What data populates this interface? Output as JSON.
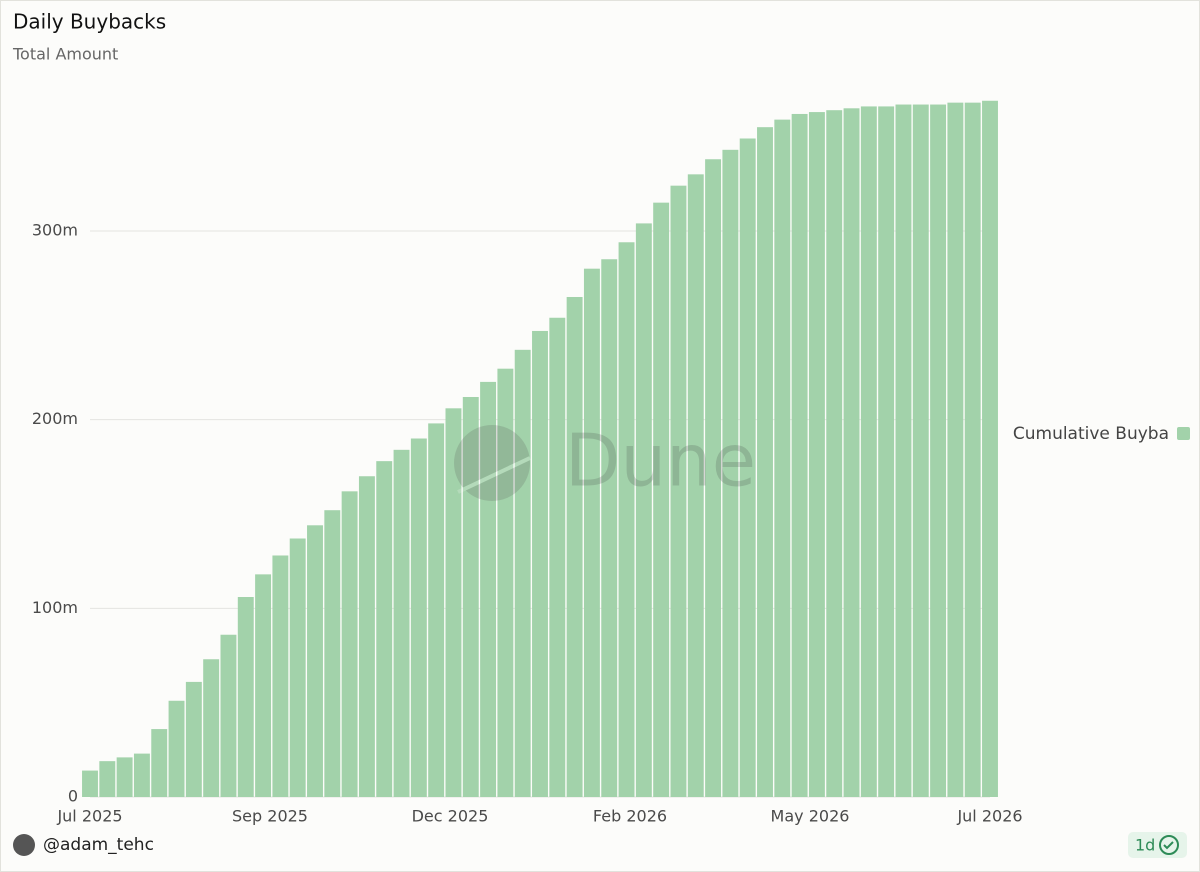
{
  "chart_data": {
    "type": "bar",
    "title": "Daily Buybacks",
    "subtitle": "Total Amount",
    "watermark": "Dune",
    "author": "@adam_tehc",
    "refresh": "1d",
    "legend": "right",
    "grid": true,
    "series": [
      {
        "name": "Cumulative Buyba",
        "color": "#a2d2aa",
        "values": [
          14000000,
          19000000,
          21000000,
          23000000,
          36000000,
          51000000,
          61000000,
          73000000,
          86000000,
          106000000,
          118000000,
          128000000,
          137000000,
          144000000,
          152000000,
          162000000,
          170000000,
          178000000,
          184000000,
          190000000,
          198000000,
          206000000,
          212000000,
          220000000,
          227000000,
          237000000,
          247000000,
          254000000,
          265000000,
          280000000,
          285000000,
          294000000,
          304000000,
          315000000,
          324000000,
          330000000,
          338000000,
          343000000,
          349000000,
          355000000,
          359000000,
          362000000,
          363000000,
          364000000,
          365000000,
          366000000,
          366000000,
          367000000,
          367000000,
          367000000,
          368000000,
          368000000,
          369000000
        ]
      }
    ],
    "xlim": [
      0,
      52
    ],
    "xticks": [
      {
        "value": 0,
        "label": "Jul 2025"
      },
      {
        "value": 10.4,
        "label": "Sep 2025"
      },
      {
        "value": 20.8,
        "label": "Dec 2025"
      },
      {
        "value": 31.2,
        "label": "Feb 2026"
      },
      {
        "value": 41.6,
        "label": "May 2026"
      },
      {
        "value": 52,
        "label": "Jul 2026"
      }
    ],
    "ylim": [
      0,
      380000000
    ],
    "yticks": [
      0,
      {
        "value": 100000000,
        "label": "100m"
      },
      {
        "value": 200000000,
        "label": "200m"
      },
      {
        "value": 300000000,
        "label": "300m"
      }
    ]
  }
}
